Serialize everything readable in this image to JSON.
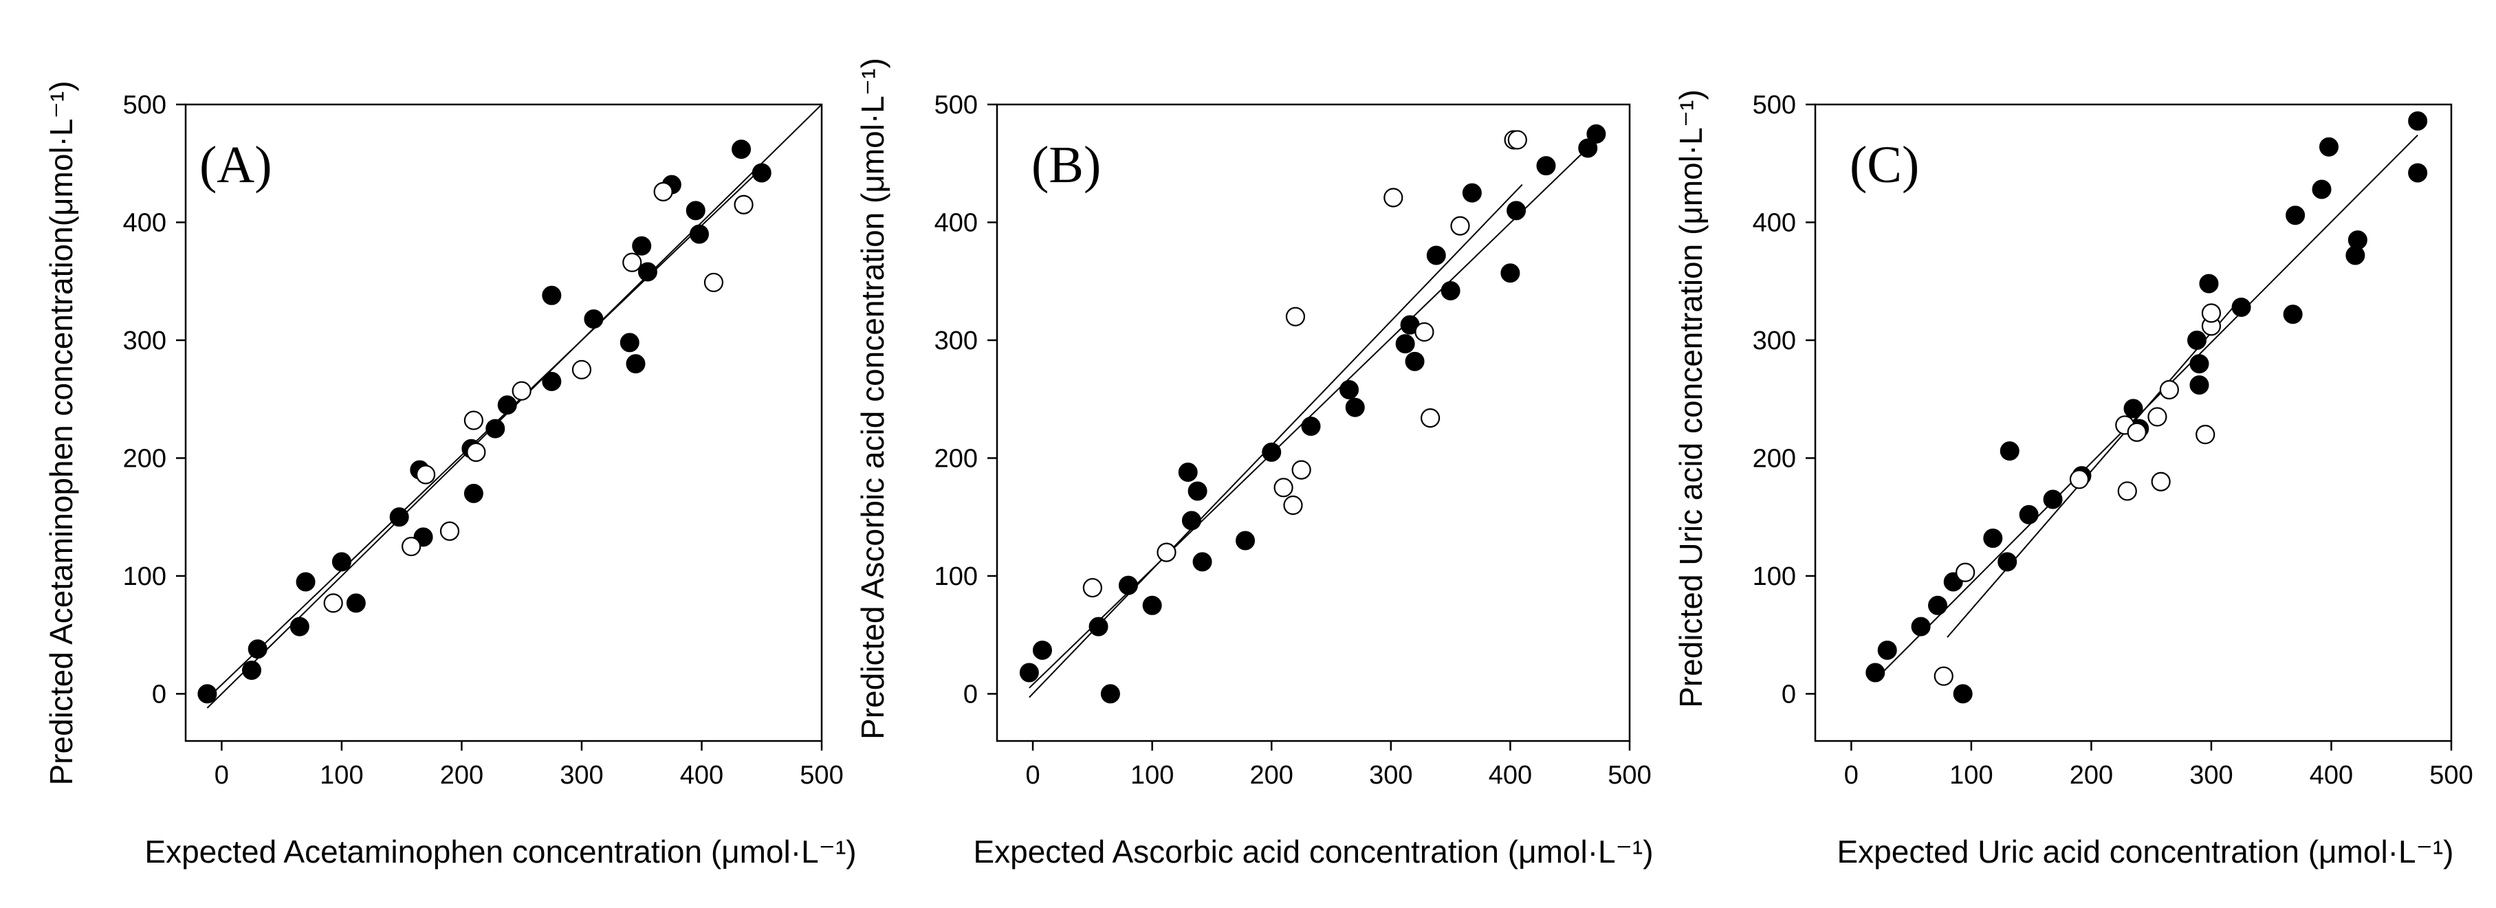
{
  "chart_data": [
    {
      "type": "scatter",
      "panel_label": "(A)",
      "xlabel": "Expected Acetaminophen concentration (μmol·L⁻¹)",
      "ylabel": "Predicted Acetaminophen concentration(μmol·L⁻¹)",
      "xlim": [
        -30,
        500
      ],
      "ylim": [
        -40,
        500
      ],
      "xticks": [
        0,
        100,
        200,
        300,
        400,
        500
      ],
      "yticks": [
        0,
        100,
        200,
        300,
        400,
        500
      ],
      "series": [
        {
          "name": "filled",
          "marker": "filled-circle",
          "points": [
            [
              -12,
              0
            ],
            [
              25,
              20
            ],
            [
              30,
              38
            ],
            [
              65,
              57
            ],
            [
              70,
              95
            ],
            [
              100,
              112
            ],
            [
              112,
              77
            ],
            [
              148,
              150
            ],
            [
              165,
              190
            ],
            [
              168,
              133
            ],
            [
              208,
              208
            ],
            [
              210,
              170
            ],
            [
              228,
              225
            ],
            [
              238,
              245
            ],
            [
              275,
              338
            ],
            [
              275,
              265
            ],
            [
              310,
              318
            ],
            [
              340,
              298
            ],
            [
              345,
              280
            ],
            [
              350,
              380
            ],
            [
              355,
              358
            ],
            [
              375,
              432
            ],
            [
              395,
              410
            ],
            [
              398,
              390
            ],
            [
              433,
              462
            ],
            [
              450,
              442
            ]
          ]
        },
        {
          "name": "open",
          "marker": "open-circle",
          "points": [
            [
              93,
              77
            ],
            [
              158,
              125
            ],
            [
              170,
              186
            ],
            [
              190,
              138
            ],
            [
              210,
              232
            ],
            [
              212,
              205
            ],
            [
              250,
              257
            ],
            [
              300,
              275
            ],
            [
              342,
              366
            ],
            [
              368,
              426
            ],
            [
              410,
              349
            ],
            [
              435,
              415
            ]
          ]
        }
      ],
      "fit_lines": [
        {
          "x": [
            -12,
            450
          ],
          "y": [
            -4,
            446
          ]
        },
        {
          "x": [
            -12,
            500
          ],
          "y": [
            -12,
            500
          ]
        }
      ]
    },
    {
      "type": "scatter",
      "panel_label": "(B)",
      "xlabel": "Expected Ascorbic acid concentration (μmol·L⁻¹)",
      "ylabel": "Predicted Ascorbic acid concentration (μmol·L⁻¹)",
      "xlim": [
        -30,
        500
      ],
      "ylim": [
        -40,
        500
      ],
      "xticks": [
        0,
        100,
        200,
        300,
        400,
        500
      ],
      "yticks": [
        0,
        100,
        200,
        300,
        400,
        500
      ],
      "series": [
        {
          "name": "filled",
          "marker": "filled-circle",
          "points": [
            [
              -3,
              18
            ],
            [
              8,
              37
            ],
            [
              55,
              57
            ],
            [
              65,
              0
            ],
            [
              80,
              92
            ],
            [
              100,
              75
            ],
            [
              130,
              188
            ],
            [
              133,
              147
            ],
            [
              138,
              172
            ],
            [
              142,
              112
            ],
            [
              178,
              130
            ],
            [
              200,
              205
            ],
            [
              233,
              227
            ],
            [
              265,
              258
            ],
            [
              270,
              243
            ],
            [
              312,
              297
            ],
            [
              316,
              313
            ],
            [
              320,
              282
            ],
            [
              338,
              372
            ],
            [
              350,
              342
            ],
            [
              368,
              425
            ],
            [
              400,
              357
            ],
            [
              405,
              410
            ],
            [
              430,
              448
            ],
            [
              465,
              463
            ],
            [
              472,
              475
            ]
          ]
        },
        {
          "name": "open",
          "marker": "open-circle",
          "points": [
            [
              50,
              90
            ],
            [
              112,
              120
            ],
            [
              210,
              175
            ],
            [
              218,
              160
            ],
            [
              220,
              320
            ],
            [
              225,
              190
            ],
            [
              302,
              421
            ],
            [
              328,
              307
            ],
            [
              333,
              234
            ],
            [
              358,
              397
            ],
            [
              403,
              470
            ],
            [
              406,
              470
            ]
          ]
        }
      ],
      "fit_lines": [
        {
          "x": [
            -3,
            410
          ],
          "y": [
            -3,
            432
          ]
        },
        {
          "x": [
            -3,
            472
          ],
          "y": [
            5,
            470
          ]
        }
      ]
    },
    {
      "type": "scatter",
      "panel_label": "(C)",
      "xlabel": "Expected Uric acid concentration (μmol·L⁻¹)",
      "ylabel": "Predicted Uric acid concentration (μmol·L⁻¹)",
      "xlim": [
        -30,
        500
      ],
      "ylim": [
        -40,
        500
      ],
      "xticks": [
        0,
        100,
        200,
        300,
        400,
        500
      ],
      "yticks": [
        0,
        100,
        200,
        300,
        400,
        500
      ],
      "series": [
        {
          "name": "filled",
          "marker": "filled-circle",
          "points": [
            [
              20,
              18
            ],
            [
              30,
              37
            ],
            [
              58,
              57
            ],
            [
              72,
              75
            ],
            [
              85,
              95
            ],
            [
              93,
              0
            ],
            [
              118,
              132
            ],
            [
              130,
              112
            ],
            [
              132,
              206
            ],
            [
              148,
              152
            ],
            [
              168,
              165
            ],
            [
              192,
              185
            ],
            [
              235,
              242
            ],
            [
              240,
              225
            ],
            [
              288,
              300
            ],
            [
              290,
              262
            ],
            [
              290,
              280
            ],
            [
              298,
              348
            ],
            [
              325,
              328
            ],
            [
              368,
              322
            ],
            [
              370,
              406
            ],
            [
              392,
              428
            ],
            [
              398,
              464
            ],
            [
              420,
              372
            ],
            [
              422,
              385
            ],
            [
              472,
              486
            ],
            [
              472,
              442
            ]
          ]
        },
        {
          "name": "open",
          "marker": "open-circle",
          "points": [
            [
              77,
              15
            ],
            [
              95,
              103
            ],
            [
              190,
              182
            ],
            [
              228,
              228
            ],
            [
              230,
              172
            ],
            [
              238,
              222
            ],
            [
              255,
              235
            ],
            [
              258,
              180
            ],
            [
              265,
              258
            ],
            [
              295,
              220
            ],
            [
              300,
              312
            ],
            [
              300,
              323
            ]
          ]
        }
      ],
      "fit_lines": [
        {
          "x": [
            20,
            472
          ],
          "y": [
            12,
            474
          ]
        },
        {
          "x": [
            80,
            320
          ],
          "y": [
            48,
            330
          ]
        }
      ]
    }
  ]
}
